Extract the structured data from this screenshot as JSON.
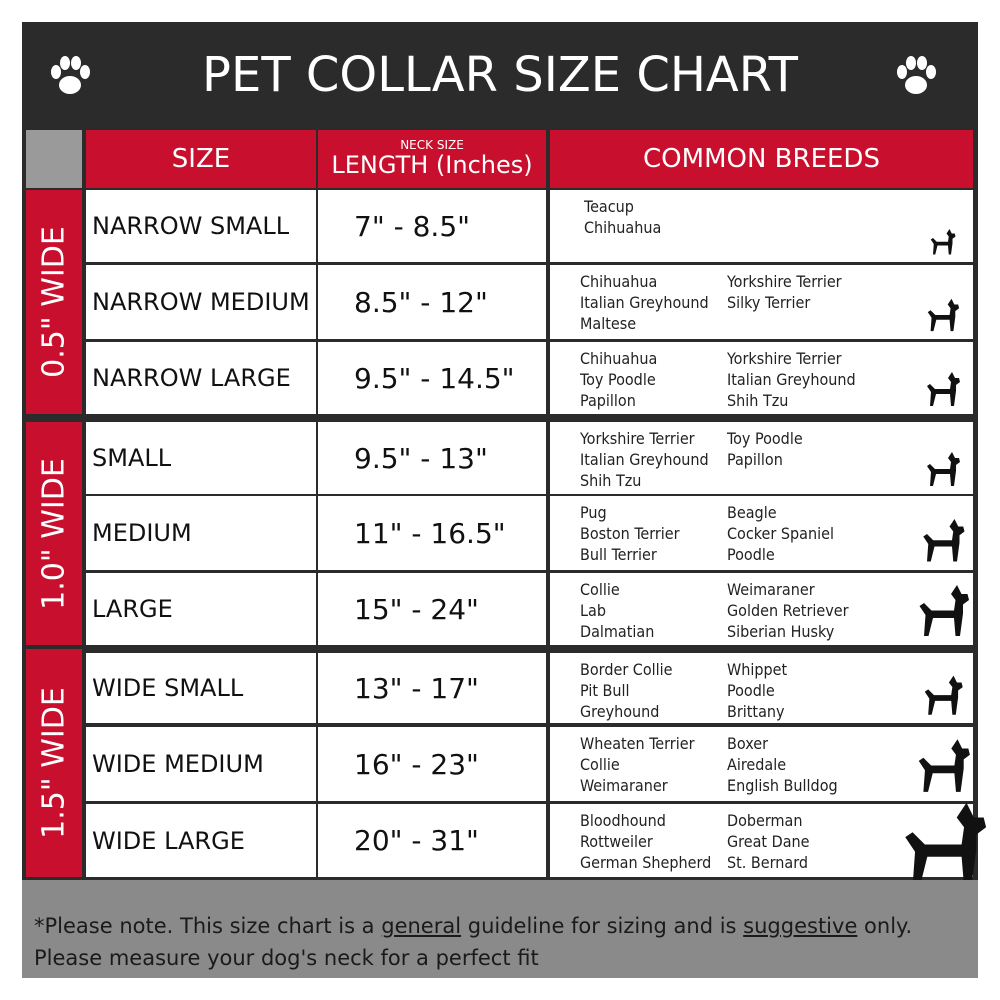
{
  "title": "PET COLLAR SIZE CHART",
  "icons": {
    "left": "paw-print-icon",
    "right": "paw-print-icon",
    "dog": "dog-silhouette-icon"
  },
  "colors": {
    "red": "#c8102e",
    "dark": "#2b2b2b",
    "grey": "#8a8a8a"
  },
  "headers": {
    "size": "SIZE",
    "length_small": "NECK SIZE",
    "length": "LENGTH (Inches)",
    "breeds": "COMMON BREEDS"
  },
  "groups": [
    "0.5\" WIDE",
    "1.0\" WIDE",
    "1.5\" WIDE"
  ],
  "rows": [
    {
      "size": "NARROW SMALL",
      "length": "7\" - 8.5\"",
      "col1": [
        "Teacup",
        "Chihuahua"
      ],
      "col2": []
    },
    {
      "size": "NARROW MEDIUM",
      "length": "8.5\" - 12\"",
      "col1": [
        "Chihuahua",
        "Italian Greyhound",
        "Maltese"
      ],
      "col2": [
        "Yorkshire Terrier",
        "Silky Terrier"
      ]
    },
    {
      "size": "NARROW LARGE",
      "length": "9.5\" - 14.5\"",
      "col1": [
        "Chihuahua",
        "Toy Poodle",
        "Papillon"
      ],
      "col2": [
        "Yorkshire Terrier",
        "Italian Greyhound",
        "Shih Tzu"
      ]
    },
    {
      "size": "SMALL",
      "length": "9.5\" - 13\"",
      "col1": [
        "Yorkshire Terrier",
        "Italian Greyhound",
        "Shih Tzu"
      ],
      "col2": [
        "Toy Poodle",
        "Papillon"
      ]
    },
    {
      "size": "MEDIUM",
      "length": "11\" - 16.5\"",
      "col1": [
        "Pug",
        "Boston Terrier",
        "Bull Terrier"
      ],
      "col2": [
        "Beagle",
        "Cocker Spaniel",
        "Poodle"
      ]
    },
    {
      "size": "LARGE",
      "length": "15\" - 24\"",
      "col1": [
        "Collie",
        "Lab",
        "Dalmatian"
      ],
      "col2": [
        "Weimaraner",
        "Golden Retriever",
        "Siberian Husky"
      ]
    },
    {
      "size": "WIDE SMALL",
      "length": "13\" - 17\"",
      "col1": [
        "Border Collie",
        "Pit Bull",
        "Greyhound"
      ],
      "col2": [
        "Whippet",
        "Poodle",
        "Brittany"
      ]
    },
    {
      "size": "WIDE MEDIUM",
      "length": "16\" - 23\"",
      "col1": [
        "Wheaten Terrier",
        "Collie",
        "Weimaraner"
      ],
      "col2": [
        "Boxer",
        "Airedale",
        "English Bulldog"
      ]
    },
    {
      "size": "WIDE LARGE",
      "length": "20\" - 31\"",
      "col1": [
        "Bloodhound",
        "Rottweiler",
        "German Shepherd"
      ],
      "col2": [
        "Doberman",
        "Great Dane",
        "St. Bernard"
      ]
    }
  ],
  "footer": {
    "p1": "*Please note. This size chart is a ",
    "u1": "general",
    "p2": " guideline for sizing and is ",
    "u2": "suggestive",
    "p3": " only.",
    "line2": "Please measure your dog's neck for a perfect fit"
  }
}
